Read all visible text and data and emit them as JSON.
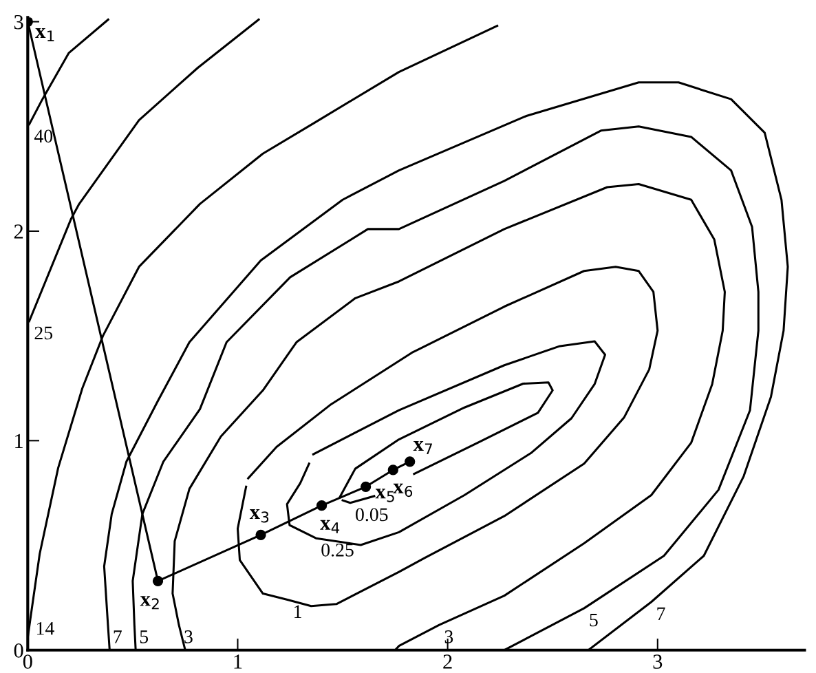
{
  "chart_data": {
    "type": "line",
    "xlim": [
      0,
      3.7
    ],
    "ylim": [
      0,
      3.02
    ],
    "xticks": [
      0,
      1,
      2,
      3
    ],
    "yticks": [
      0,
      1,
      2,
      3
    ],
    "grid": false,
    "legend": false,
    "line_style": "solid",
    "series": [
      {
        "color": "#000000",
        "marker": "circle",
        "x": [
          0.0,
          0.62,
          1.11,
          1.4,
          1.61,
          1.74,
          1.82
        ],
        "values": [
          3.0,
          0.33,
          0.55,
          0.69,
          0.78,
          0.86,
          0.9
        ]
      },
      {
        "color": "#000000",
        "x": [
          0.007,
          0.07,
          0.195,
          0.383
        ],
        "values": [
          2.51,
          2.63,
          2.85,
          3.01
        ]
      },
      {
        "color": "#000000",
        "x": [
          0.007,
          0.207,
          0.245,
          0.53,
          0.81,
          1.1
        ],
        "values": [
          1.57,
          2.06,
          2.13,
          2.53,
          2.78,
          3.01
        ]
      },
      {
        "color": "#000000",
        "x": [
          0.0,
          0.014,
          0.057,
          0.145,
          0.26,
          0.358,
          0.53,
          0.82,
          1.12,
          1.37,
          1.768,
          2.236
        ],
        "values": [
          0.06,
          0.16,
          0.46,
          0.87,
          1.25,
          1.5,
          1.83,
          2.13,
          2.37,
          2.52,
          2.76,
          2.98
        ]
      },
      {
        "color": "#000000",
        "x": [
          0.39,
          0.382,
          0.364,
          0.4,
          0.47,
          0.62,
          0.77,
          1.11,
          1.5,
          1.768,
          2.375,
          2.91,
          3.1,
          3.35,
          3.51,
          3.59,
          3.62,
          3.6,
          3.54,
          3.41,
          3.22,
          2.97,
          2.67
        ],
        "values": [
          0.0,
          0.12,
          0.4,
          0.65,
          0.9,
          1.19,
          1.47,
          1.86,
          2.15,
          2.29,
          2.55,
          2.71,
          2.71,
          2.63,
          2.47,
          2.15,
          1.83,
          1.525,
          1.21,
          0.83,
          0.45,
          0.23,
          0.0
        ]
      },
      {
        "color": "#000000",
        "x": [
          0.514,
          0.508,
          0.5,
          0.546,
          0.646,
          0.82,
          0.947,
          1.25,
          1.62,
          1.768,
          2.27,
          2.73,
          2.91,
          3.16,
          3.35,
          3.45,
          3.48,
          3.48,
          3.44,
          3.29,
          3.03,
          2.65,
          2.27
        ],
        "values": [
          0.0,
          0.12,
          0.33,
          0.65,
          0.9,
          1.15,
          1.47,
          1.78,
          2.01,
          2.01,
          2.24,
          2.48,
          2.5,
          2.45,
          2.29,
          2.02,
          1.71,
          1.525,
          1.145,
          0.765,
          0.45,
          0.2,
          0.0
        ]
      },
      {
        "color": "#000000",
        "x": [
          0.75,
          0.72,
          0.69,
          0.7,
          0.77,
          0.92,
          1.12,
          1.28,
          1.56,
          1.768,
          2.27,
          2.76,
          2.91,
          3.16,
          3.27,
          3.32,
          3.31,
          3.26,
          3.16,
          2.97,
          2.65,
          2.27,
          1.96,
          1.768,
          1.75
        ],
        "values": [
          0.0,
          0.12,
          0.27,
          0.52,
          0.77,
          1.02,
          1.24,
          1.47,
          1.68,
          1.76,
          2.01,
          2.21,
          2.225,
          2.15,
          1.96,
          1.71,
          1.525,
          1.27,
          0.99,
          0.74,
          0.51,
          0.26,
          0.12,
          0.02,
          0.0
        ]
      },
      {
        "color": "#000000",
        "x": [
          1.05,
          1.185,
          1.44,
          1.83,
          2.27,
          2.65,
          2.8,
          2.91,
          2.98,
          3.0,
          2.96,
          2.84,
          2.65,
          2.27,
          1.89,
          1.768,
          1.47,
          1.35,
          1.24,
          1.12,
          1.01,
          1.0,
          1.04
        ],
        "values": [
          0.82,
          0.97,
          1.17,
          1.42,
          1.64,
          1.81,
          1.83,
          1.81,
          1.71,
          1.525,
          1.34,
          1.11,
          0.89,
          0.64,
          0.44,
          0.373,
          0.22,
          0.21,
          0.24,
          0.27,
          0.43,
          0.58,
          0.78
        ]
      },
      {
        "color": "#000000",
        "x": [
          1.36,
          1.768,
          2.27,
          2.53,
          2.7,
          2.75,
          2.7,
          2.59,
          2.4,
          2.08,
          1.768,
          1.586,
          1.373,
          1.247,
          1.235,
          1.298,
          1.34
        ],
        "values": [
          0.935,
          1.145,
          1.36,
          1.45,
          1.474,
          1.41,
          1.27,
          1.107,
          0.943,
          0.74,
          0.563,
          0.502,
          0.534,
          0.597,
          0.697,
          0.797,
          0.89
        ]
      },
      {
        "color": "#000000",
        "x": [
          1.485,
          1.56,
          1.768,
          2.08,
          2.36,
          2.48,
          2.5,
          2.43,
          2.15,
          1.84
        ],
        "values": [
          0.728,
          0.866,
          1.006,
          1.158,
          1.272,
          1.278,
          1.24,
          1.133,
          0.993,
          0.841
        ]
      },
      {
        "color": "#000000",
        "x": [
          1.65,
          1.536,
          1.5
        ],
        "values": [
          0.735,
          0.703,
          0.715
        ]
      }
    ],
    "annotations": [
      {
        "text": "x$_{1}$",
        "x": 0.0,
        "y": 3.0
      },
      {
        "text": "x$_{2}$",
        "x": 0.62,
        "y": 0.33
      },
      {
        "text": "x$_{3}$",
        "x": 1.11,
        "y": 0.55
      },
      {
        "text": "x$_{4}$",
        "x": 1.4,
        "y": 0.69
      },
      {
        "text": "x$_{5}$",
        "x": 1.61,
        "y": 0.78
      },
      {
        "text": "x$_{6}$",
        "x": 1.74,
        "y": 0.86
      },
      {
        "text": "x$_{7}$",
        "x": 1.82,
        "y": 0.9
      },
      {
        "text": "40",
        "x": 0.007,
        "y": 2.51
      },
      {
        "text": "25",
        "x": 0.007,
        "y": 1.57
      },
      {
        "text": "14",
        "x": 0.014,
        "y": 0.16
      },
      {
        "text": "7",
        "x": 0.382,
        "y": 0.12
      },
      {
        "text": "5",
        "x": 0.508,
        "y": 0.12
      },
      {
        "text": "3",
        "x": 0.72,
        "y": 0.12
      },
      {
        "text": "1",
        "x": 1.24,
        "y": 0.24
      },
      {
        "text": "0.25",
        "x": 1.373,
        "y": 0.534
      },
      {
        "text": "0.05",
        "x": 1.536,
        "y": 0.703
      },
      {
        "text": "3",
        "x": 1.96,
        "y": 0.12
      },
      {
        "text": "5",
        "x": 2.65,
        "y": 0.2
      },
      {
        "text": "7",
        "x": 2.97,
        "y": 0.23
      }
    ]
  }
}
